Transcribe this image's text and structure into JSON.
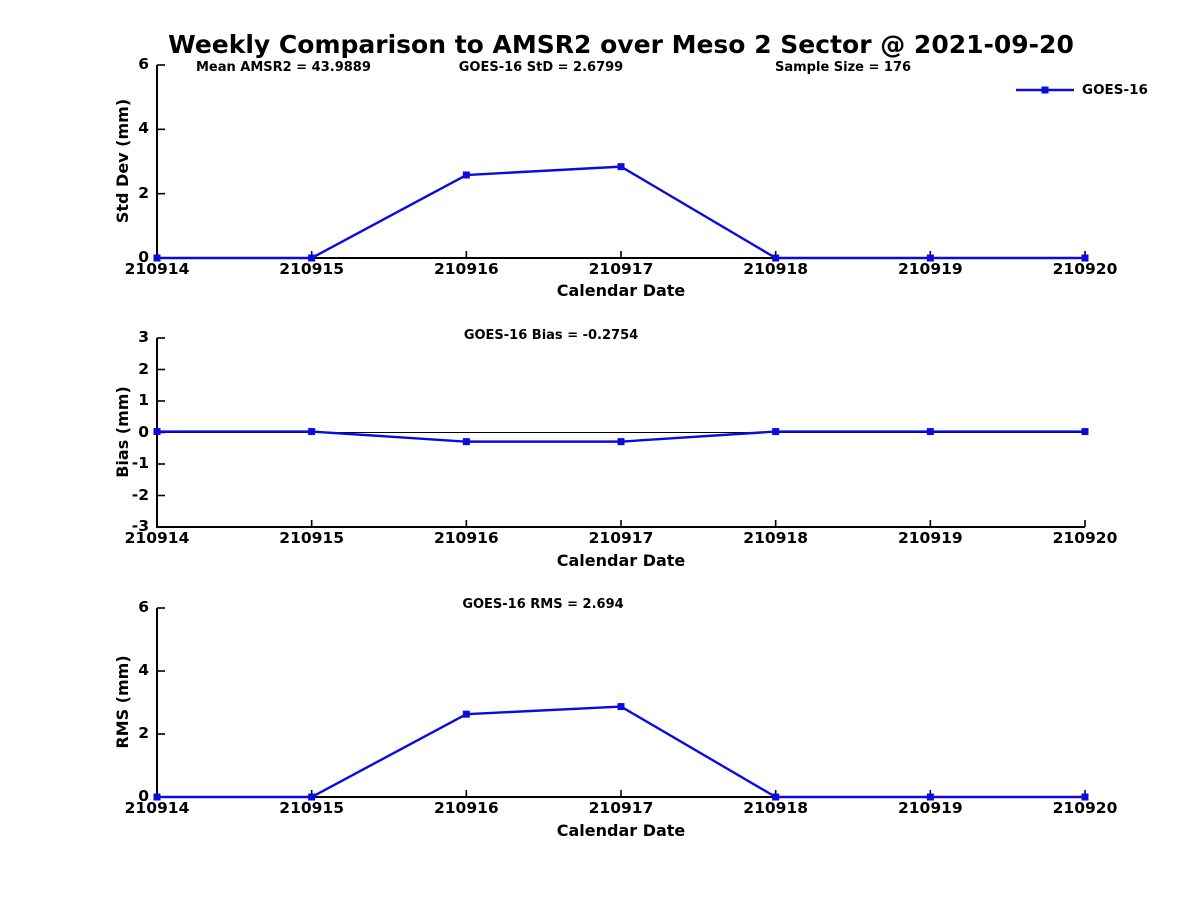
{
  "page_title": "Weekly Comparison to AMSR2 over Meso 2 Sector @ 2021-09-20",
  "header_annotations": {
    "mean_amsr2": "Mean AMSR2 = 43.9889",
    "goes16_std": "GOES-16 StD = 2.6799",
    "sample_size": "Sample Size = 176"
  },
  "legend": {
    "label": "GOES-16"
  },
  "colors": {
    "series": "#0b0bdf",
    "axis": "#000000",
    "text": "#000000",
    "background": "#ffffff"
  },
  "chart_data": [
    {
      "type": "line",
      "panel": "std_dev",
      "ylabel": "Std Dev (mm)",
      "xlabel": "Calendar Date",
      "annotation": "",
      "categories": [
        "210914",
        "210915",
        "210916",
        "210917",
        "210918",
        "210919",
        "210920"
      ],
      "series": [
        {
          "name": "GOES-16",
          "values": [
            0,
            0,
            2.58,
            2.84,
            0,
            0,
            0
          ]
        }
      ],
      "ylim": [
        0,
        6
      ],
      "yticks": [
        0,
        2,
        4,
        6
      ],
      "zero_line": false,
      "grid": false,
      "legend_position": "top-right"
    },
    {
      "type": "line",
      "panel": "bias",
      "ylabel": "Bias (mm)",
      "xlabel": "Calendar Date",
      "annotation": "GOES-16 Bias  = -0.2754",
      "categories": [
        "210914",
        "210915",
        "210916",
        "210917",
        "210918",
        "210919",
        "210920"
      ],
      "series": [
        {
          "name": "GOES-16",
          "values": [
            0.03,
            0.03,
            -0.29,
            -0.29,
            0.03,
            0.03,
            0.03
          ]
        }
      ],
      "ylim": [
        -3,
        3
      ],
      "yticks": [
        -3,
        -2,
        -1,
        0,
        1,
        2,
        3
      ],
      "zero_line": true,
      "grid": false,
      "legend_position": "none"
    },
    {
      "type": "line",
      "panel": "rms",
      "ylabel": "RMS (mm)",
      "xlabel": "Calendar Date",
      "annotation": "GOES-16 RMS = 2.694",
      "categories": [
        "210914",
        "210915",
        "210916",
        "210917",
        "210918",
        "210919",
        "210920"
      ],
      "series": [
        {
          "name": "GOES-16",
          "values": [
            0,
            0,
            2.63,
            2.87,
            0,
            0,
            0
          ]
        }
      ],
      "ylim": [
        0,
        6
      ],
      "yticks": [
        0,
        2,
        4,
        6
      ],
      "zero_line": false,
      "grid": false,
      "legend_position": "none"
    }
  ]
}
